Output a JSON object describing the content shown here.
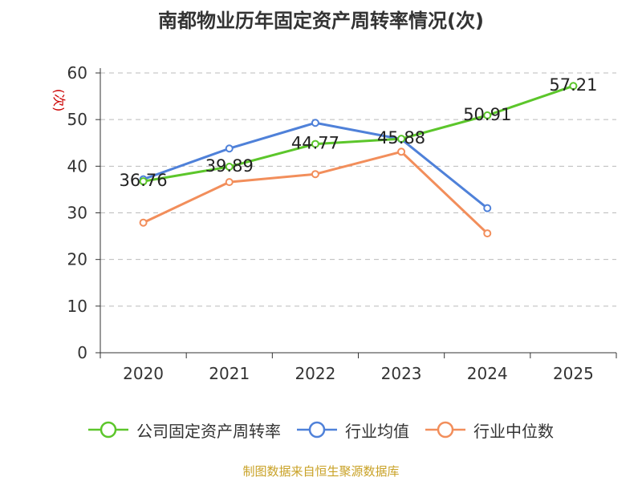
{
  "chart_data": {
    "type": "line",
    "title": "南都物业历年固定资产周转率情况(次)",
    "ylabel": "(次)",
    "xlabel": "",
    "categories": [
      "2020",
      "2021",
      "2022",
      "2023",
      "2024",
      "2025"
    ],
    "ylim": [
      0,
      60
    ],
    "yticks": [
      0,
      10,
      20,
      30,
      40,
      50,
      60
    ],
    "grid": true,
    "legend_position": "bottom",
    "series": [
      {
        "name": "公司固定资产周转率",
        "color": "#5cc62b",
        "values": [
          36.76,
          39.89,
          44.77,
          45.88,
          50.91,
          57.21
        ],
        "labels": [
          "36.76",
          "39.89",
          "44.77",
          "45.88",
          "50.91",
          "57.21"
        ]
      },
      {
        "name": "行业均值",
        "color": "#4f81d9",
        "values": [
          37.2,
          43.8,
          49.3,
          45.8,
          31.0,
          null
        ]
      },
      {
        "name": "行业中位数",
        "color": "#f28e5b",
        "values": [
          27.9,
          36.6,
          38.3,
          43.1,
          25.6,
          null
        ]
      }
    ],
    "source": "制图数据来自恒生聚源数据库"
  }
}
